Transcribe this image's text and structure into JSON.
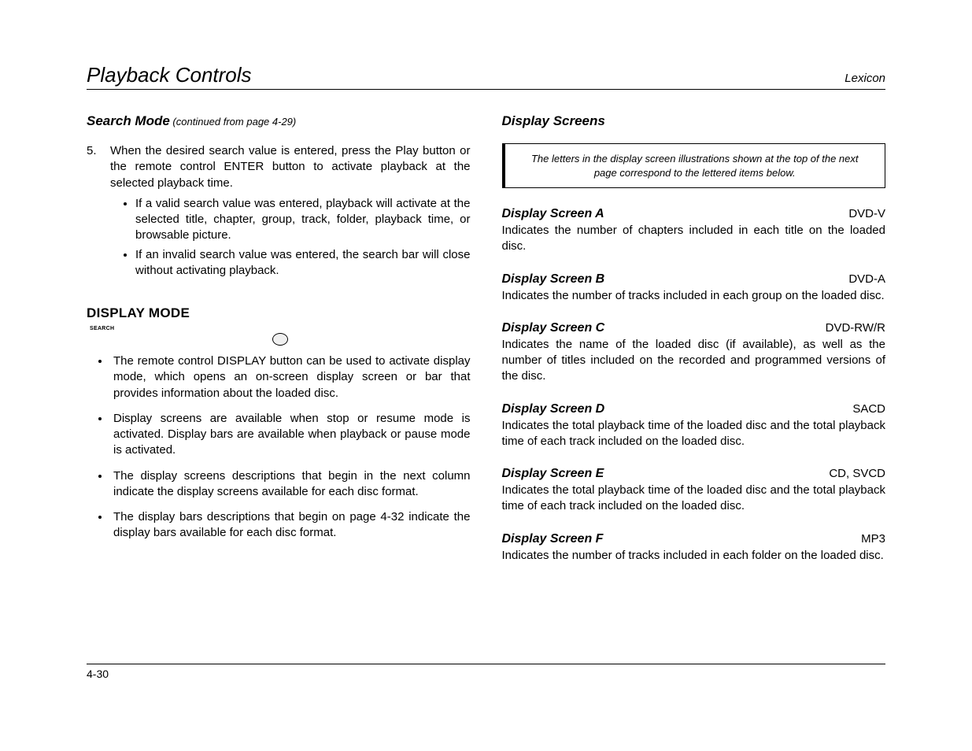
{
  "header": {
    "title": "Playback Controls",
    "brand": "Lexicon"
  },
  "left": {
    "sectionTitle": "Search Mode",
    "continued": " (continued from page 4-29)",
    "step": {
      "num": "5.",
      "text": "When the desired search value is entered, press the Play button or the remote control ENTER button to activate playback at the selected playback time.",
      "sub": [
        "If a valid search value was entered, playback will activate at the selected title, chapter, group, track, folder, playback time, or browsable picture.",
        "If an invalid search value was entered, the search bar will close without activating playback."
      ]
    },
    "displayModeTitle": "DISPLAY MODE",
    "buttonLabel": "SEARCH",
    "bullets": [
      "The remote control DISPLAY button can be used to activate display mode, which opens an on-screen display screen or bar that provides information about the loaded disc.",
      "Display screens are available when stop or resume mode is activated. Display bars are available when playback or pause mode is activated.",
      "The display screens descriptions that begin in the next column indicate the display screens available for each disc format.",
      "The display bars descriptions that begin on page 4-32 indicate the display bars available for each disc format."
    ]
  },
  "right": {
    "sectionTitle": "Display Screens",
    "note": "The letters in the display screen illustrations shown at the top of the next page correspond to the lettered items below.",
    "screens": [
      {
        "name": "Display Screen A",
        "format": "DVD-V",
        "desc": "Indicates the number of chapters included in each title on the loaded disc."
      },
      {
        "name": "Display Screen B",
        "format": "DVD-A",
        "desc": "Indicates the number of tracks included in each group on the loaded disc."
      },
      {
        "name": "Display Screen C",
        "format": "DVD-RW/R",
        "desc": "Indicates the name of the loaded disc (if available), as well as the number of titles included on the recorded and programmed versions of the disc."
      },
      {
        "name": "Display Screen D",
        "format": "SACD",
        "desc": "Indicates the total playback time of the loaded disc and the total playback time of each track included on the loaded disc."
      },
      {
        "name": "Display Screen E",
        "format": "CD, SVCD",
        "desc": "Indicates the total playback time of the loaded disc and the total playback time of each track included on the loaded disc."
      },
      {
        "name": "Display Screen F",
        "format": "MP3",
        "desc": "Indicates the number of tracks included in each folder on the loaded disc."
      }
    ]
  },
  "footer": {
    "pageNum": "4-30"
  }
}
